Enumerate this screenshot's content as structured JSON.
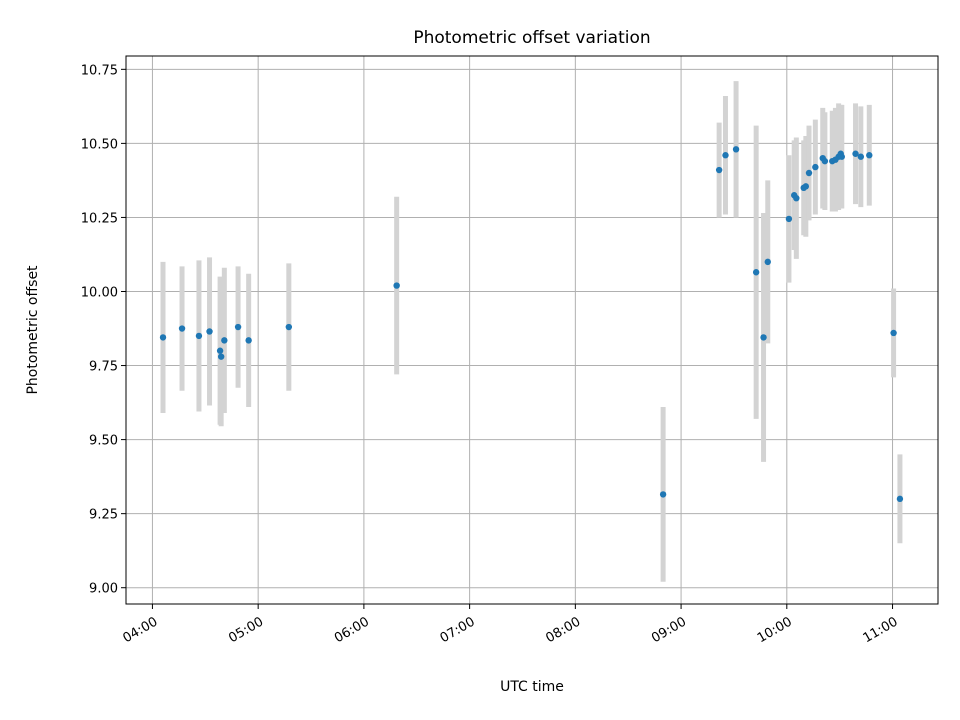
{
  "chart_data": {
    "type": "scatter",
    "title": "Photometric offset variation",
    "xlabel": "UTC time",
    "ylabel": "Photometric offset",
    "x_unit": "hours (UTC)",
    "xlim": [
      3.75,
      11.43
    ],
    "ylim": [
      8.945,
      10.795
    ],
    "grid": true,
    "x_ticks": [
      {
        "value": 4,
        "label": "04:00"
      },
      {
        "value": 5,
        "label": "05:00"
      },
      {
        "value": 6,
        "label": "06:00"
      },
      {
        "value": 7,
        "label": "07:00"
      },
      {
        "value": 8,
        "label": "08:00"
      },
      {
        "value": 9,
        "label": "09:00"
      },
      {
        "value": 10,
        "label": "10:00"
      },
      {
        "value": 11,
        "label": "11:00"
      }
    ],
    "y_ticks": [
      {
        "value": 9.0,
        "label": "9.00"
      },
      {
        "value": 9.25,
        "label": "9.25"
      },
      {
        "value": 9.5,
        "label": "9.50"
      },
      {
        "value": 9.75,
        "label": "9.75"
      },
      {
        "value": 10.0,
        "label": "10.00"
      },
      {
        "value": 10.25,
        "label": "10.25"
      },
      {
        "value": 10.5,
        "label": "10.50"
      },
      {
        "value": 10.75,
        "label": "10.75"
      }
    ],
    "colors": {
      "marker": "#1f77b4",
      "errorbar": "#d3d3d3",
      "grid": "#b0b0b0"
    },
    "series": [
      {
        "x": [
          4.1,
          4.28,
          4.44,
          4.54,
          4.64,
          4.65,
          4.68,
          4.81,
          4.91,
          5.29,
          6.31,
          8.83,
          9.36,
          9.42,
          9.52,
          9.71,
          9.78,
          9.82,
          10.02,
          10.07,
          10.09,
          10.16,
          10.18,
          10.21,
          10.27,
          10.34,
          10.36,
          10.43,
          10.46,
          10.49,
          10.51,
          10.52,
          10.65,
          10.7,
          10.78,
          11.01,
          11.07
        ],
        "y": [
          9.845,
          9.875,
          9.85,
          9.865,
          9.8,
          9.78,
          9.835,
          9.88,
          9.835,
          9.88,
          10.02,
          9.315,
          10.41,
          10.46,
          10.48,
          10.065,
          9.845,
          10.1,
          10.245,
          10.325,
          10.315,
          10.35,
          10.355,
          10.4,
          10.42,
          10.45,
          10.44,
          10.44,
          10.445,
          10.455,
          10.465,
          10.455,
          10.465,
          10.455,
          10.46,
          9.86,
          9.3
        ],
        "yerr": [
          0.255,
          0.21,
          0.255,
          0.25,
          0.25,
          0.235,
          0.245,
          0.205,
          0.225,
          0.215,
          0.3,
          0.295,
          0.16,
          0.2,
          0.23,
          0.495,
          0.42,
          0.275,
          0.215,
          0.185,
          0.205,
          0.16,
          0.17,
          0.16,
          0.16,
          0.17,
          0.165,
          0.17,
          0.175,
          0.18,
          0.165,
          0.175,
          0.17,
          0.17,
          0.17,
          0.15,
          0.15
        ]
      }
    ]
  }
}
